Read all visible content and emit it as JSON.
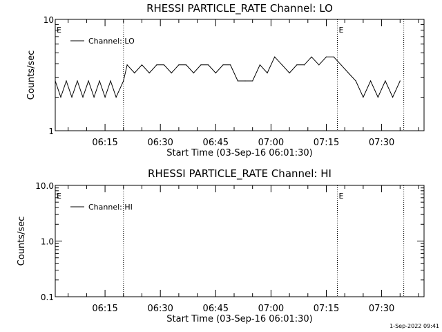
{
  "footer": {
    "timestamp": "1-Sep-2022 09:41"
  },
  "chart_data": [
    {
      "type": "line",
      "title": "RHESSI PARTICLE_RATE Channel: LO",
      "xlabel": "Start Time (03-Sep-16 06:01:30)",
      "ylabel": "Counts/sec",
      "x_units": "minutes",
      "xlim": [
        "06:01:30",
        "07:41:30"
      ],
      "ylim": [
        1,
        10
      ],
      "yscale": "log",
      "x_ticks": [
        "06:15",
        "06:30",
        "06:45",
        "07:00",
        "07:15",
        "07:30"
      ],
      "y_ticks": [
        "1",
        "10"
      ],
      "event_markers": [
        {
          "time": "06:01:30",
          "label": "E",
          "style": "line",
          "dotted": false
        },
        {
          "time": "06:20:00",
          "label": "",
          "style": "line",
          "dotted": true
        },
        {
          "time": "07:18:00",
          "label": "E",
          "style": "line",
          "dotted": true
        },
        {
          "time": "07:36:00",
          "label": "",
          "style": "line",
          "dotted": true
        }
      ],
      "legend_position": "top-left",
      "series": [
        {
          "name": "Channel: LO",
          "x": [
            "06:01:30",
            "06:03:00",
            "06:04:30",
            "06:06:00",
            "06:07:30",
            "06:09:00",
            "06:10:30",
            "06:12:00",
            "06:13:30",
            "06:15:00",
            "06:16:30",
            "06:18:00",
            "06:20:00",
            "06:21:00",
            "06:23:00",
            "06:25:00",
            "06:27:00",
            "06:29:00",
            "06:31:00",
            "06:33:00",
            "06:35:00",
            "06:37:00",
            "06:39:00",
            "06:41:00",
            "06:43:00",
            "06:45:00",
            "06:47:00",
            "06:49:00",
            "06:51:00",
            "06:53:00",
            "06:55:00",
            "06:57:00",
            "06:59:00",
            "07:01:00",
            "07:03:00",
            "07:05:00",
            "07:07:00",
            "07:09:00",
            "07:11:00",
            "07:13:00",
            "07:15:00",
            "07:17:00",
            "07:19:00",
            "07:21:00",
            "07:23:00",
            "07:25:00",
            "07:27:00",
            "07:29:00",
            "07:31:00",
            "07:33:00",
            "07:35:00"
          ],
          "values": [
            2.8,
            2.0,
            2.8,
            2.0,
            2.8,
            2.0,
            2.8,
            2.0,
            2.8,
            2.0,
            2.8,
            2.0,
            2.8,
            3.9,
            3.3,
            3.9,
            3.3,
            3.9,
            3.9,
            3.3,
            3.9,
            3.9,
            3.3,
            3.9,
            3.9,
            3.3,
            3.9,
            3.9,
            2.8,
            2.8,
            2.8,
            3.9,
            3.3,
            4.6,
            3.9,
            3.3,
            3.9,
            3.9,
            4.6,
            3.9,
            4.6,
            4.6,
            3.9,
            3.3,
            2.8,
            2.0,
            2.8,
            2.0,
            2.8,
            2.0,
            2.8
          ]
        }
      ]
    },
    {
      "type": "line",
      "title": "RHESSI PARTICLE_RATE Channel: HI",
      "xlabel": "Start Time (03-Sep-16 06:01:30)",
      "ylabel": "Counts/sec",
      "xlim": [
        "06:01:30",
        "07:41:30"
      ],
      "ylim": [
        0.1,
        10
      ],
      "yscale": "log",
      "x_ticks": [
        "06:15",
        "06:30",
        "06:45",
        "07:00",
        "07:15",
        "07:30"
      ],
      "y_ticks": [
        "0.1",
        "1.0",
        "10.0"
      ],
      "event_markers": [
        {
          "time": "06:01:30",
          "label": "E",
          "style": "line",
          "dotted": false
        },
        {
          "time": "06:20:00",
          "label": "",
          "style": "line",
          "dotted": true
        },
        {
          "time": "07:18:00",
          "label": "E",
          "style": "line",
          "dotted": true
        },
        {
          "time": "07:36:00",
          "label": "",
          "style": "line",
          "dotted": true
        }
      ],
      "legend_position": "top-left",
      "series": [
        {
          "name": "Channel: HI",
          "x": [],
          "values": []
        }
      ]
    }
  ]
}
